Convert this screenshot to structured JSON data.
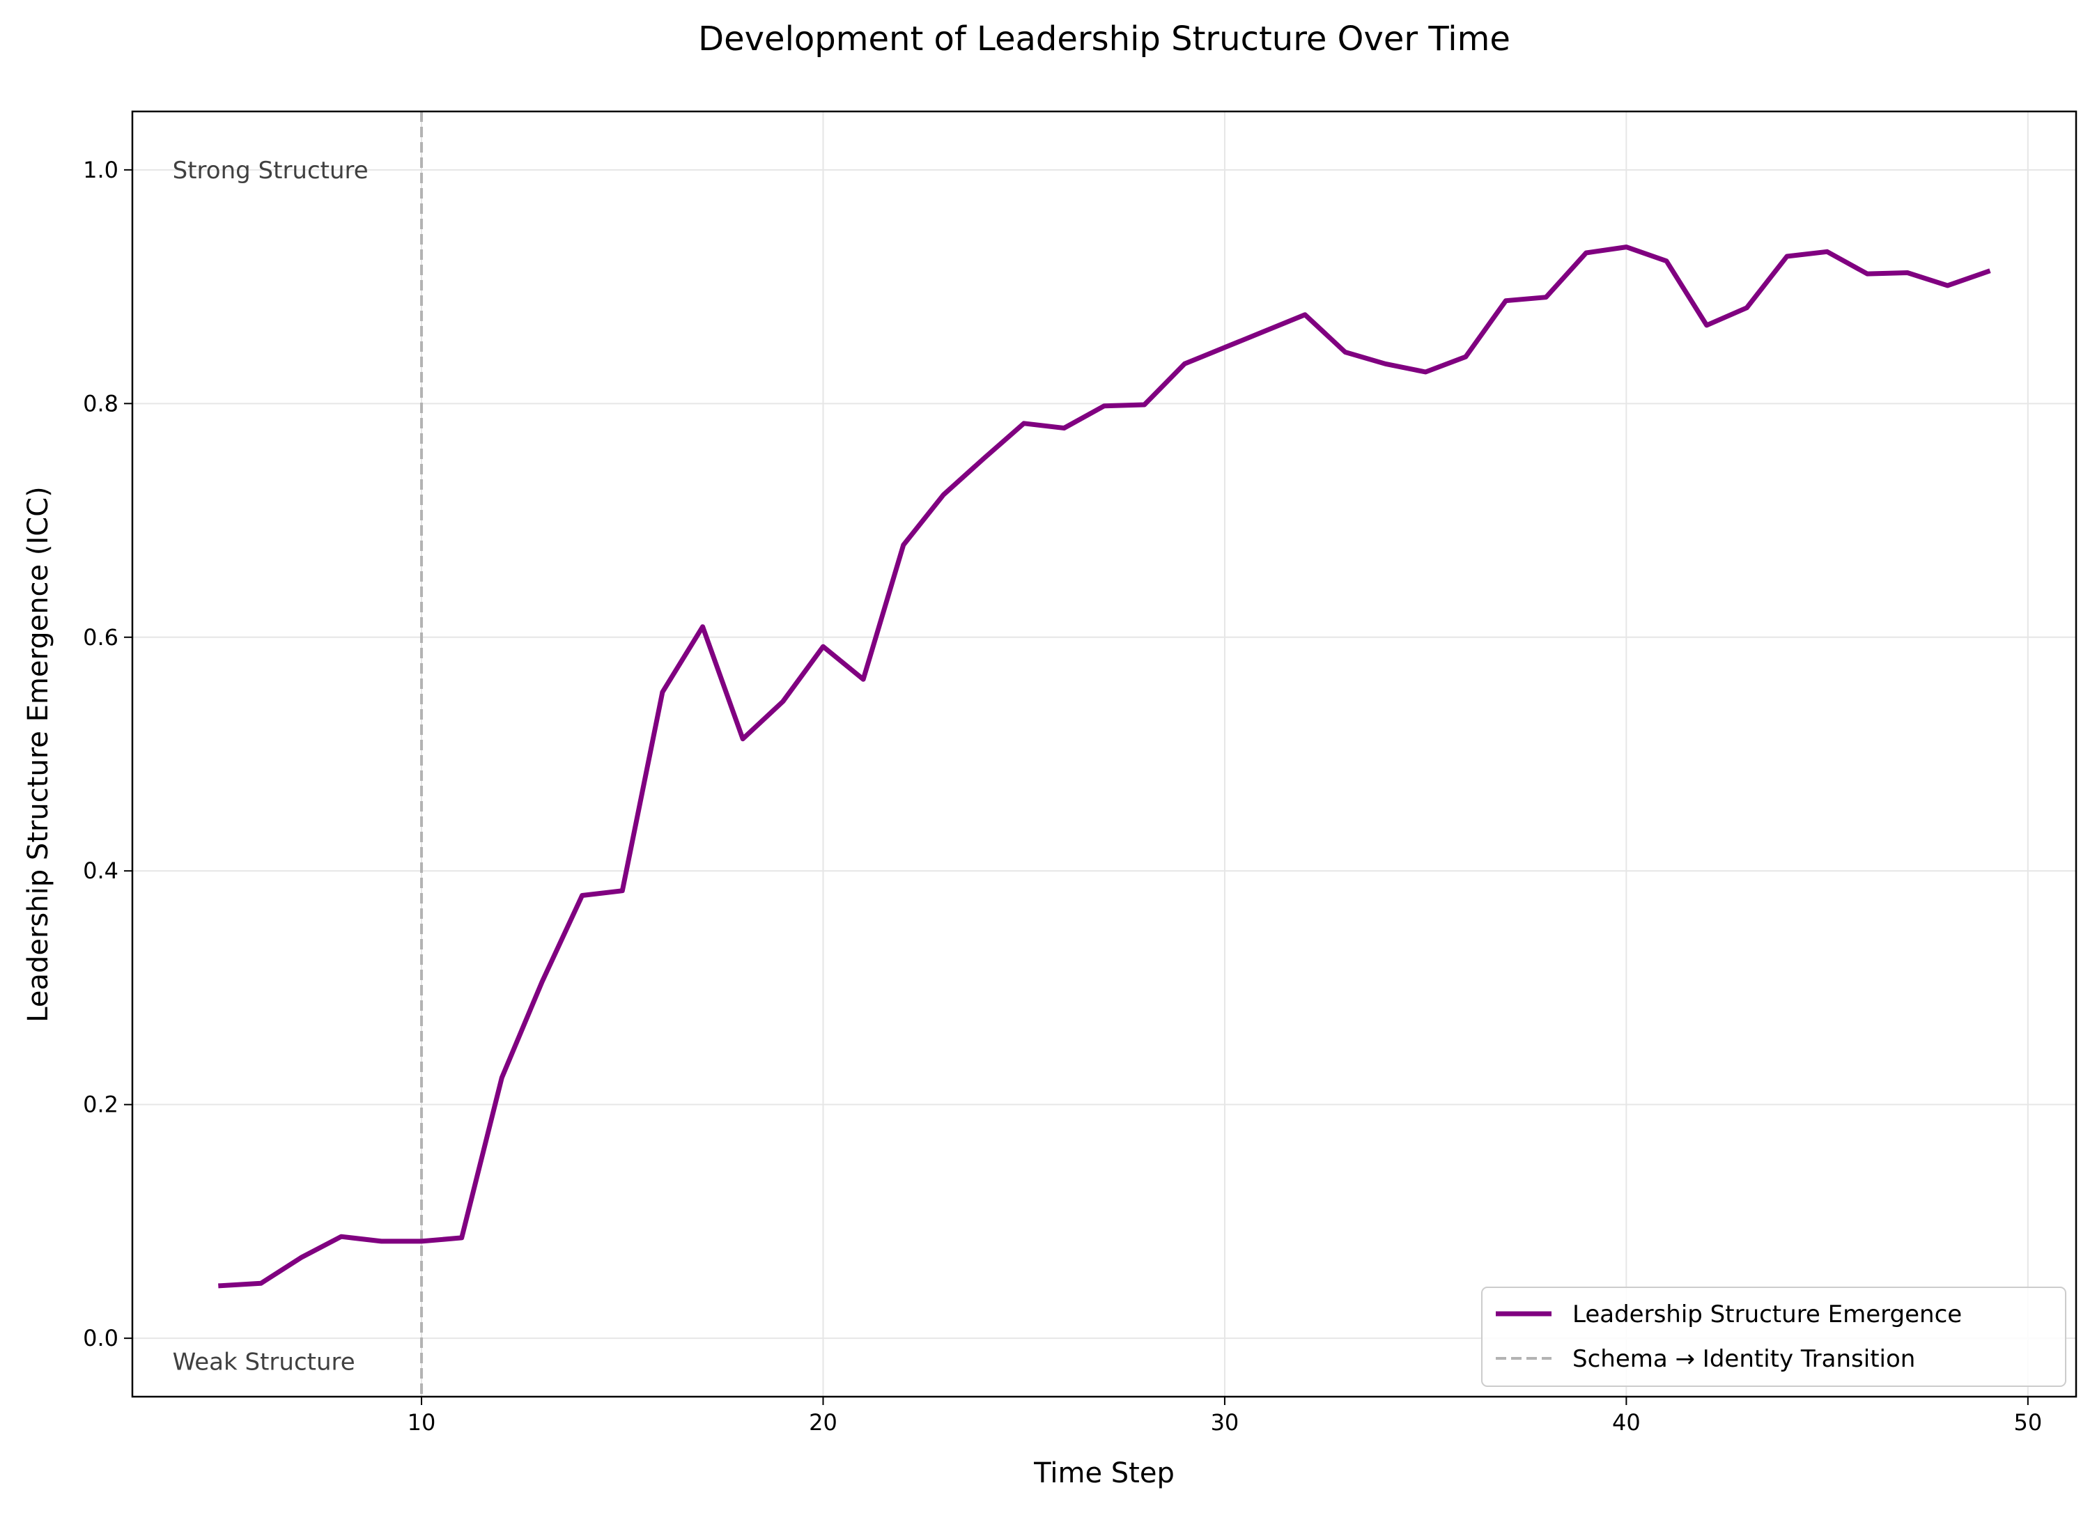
{
  "chart_data": {
    "type": "line",
    "title": "Development of Leadership Structure Over Time",
    "xlabel": "Time Step",
    "ylabel": "Leadership Structure Emergence (ICC)",
    "xlim": [
      2.8,
      51.2
    ],
    "ylim": [
      -0.05,
      1.05
    ],
    "x_ticks": [
      10,
      20,
      30,
      40,
      50
    ],
    "y_ticks": [
      0.0,
      0.2,
      0.4,
      0.6,
      0.8,
      1.0
    ],
    "x_tick_labels": [
      "10",
      "20",
      "30",
      "40",
      "50"
    ],
    "y_tick_labels": [
      "0.0",
      "0.2",
      "0.4",
      "0.6",
      "0.8",
      "1.0"
    ],
    "grid": true,
    "legend_position": "bottom-right",
    "series": [
      {
        "name": "Leadership Structure Emergence",
        "color": "#800080",
        "x": [
          5,
          6,
          7,
          8,
          9,
          10,
          11,
          12,
          13,
          14,
          15,
          16,
          17,
          18,
          19,
          20,
          21,
          22,
          23,
          24,
          25,
          26,
          27,
          28,
          29,
          30,
          31,
          32,
          33,
          34,
          35,
          36,
          37,
          38,
          39,
          40,
          41,
          42,
          43,
          44,
          45,
          46,
          47,
          48,
          49
        ],
        "values": [
          0.045,
          0.047,
          0.069,
          0.087,
          0.083,
          0.083,
          0.086,
          0.223,
          0.305,
          0.379,
          0.383,
          0.553,
          0.609,
          0.513,
          0.545,
          0.592,
          0.564,
          0.679,
          0.722,
          0.753,
          0.783,
          0.779,
          0.798,
          0.799,
          0.834,
          0.848,
          0.862,
          0.876,
          0.844,
          0.834,
          0.827,
          0.84,
          0.888,
          0.891,
          0.929,
          0.934,
          0.922,
          0.867,
          0.882,
          0.926,
          0.93,
          0.911,
          0.912,
          0.901,
          0.913
        ]
      }
    ],
    "vertical_line": {
      "x": 10,
      "name": "Schema → Identity Transition",
      "color": "#b3b3b3"
    },
    "annotations": [
      {
        "text": "Strong Structure",
        "x": 3.8,
        "y": 1.0
      },
      {
        "text": "Weak Structure",
        "x": 3.8,
        "y": -0.02
      }
    ]
  }
}
